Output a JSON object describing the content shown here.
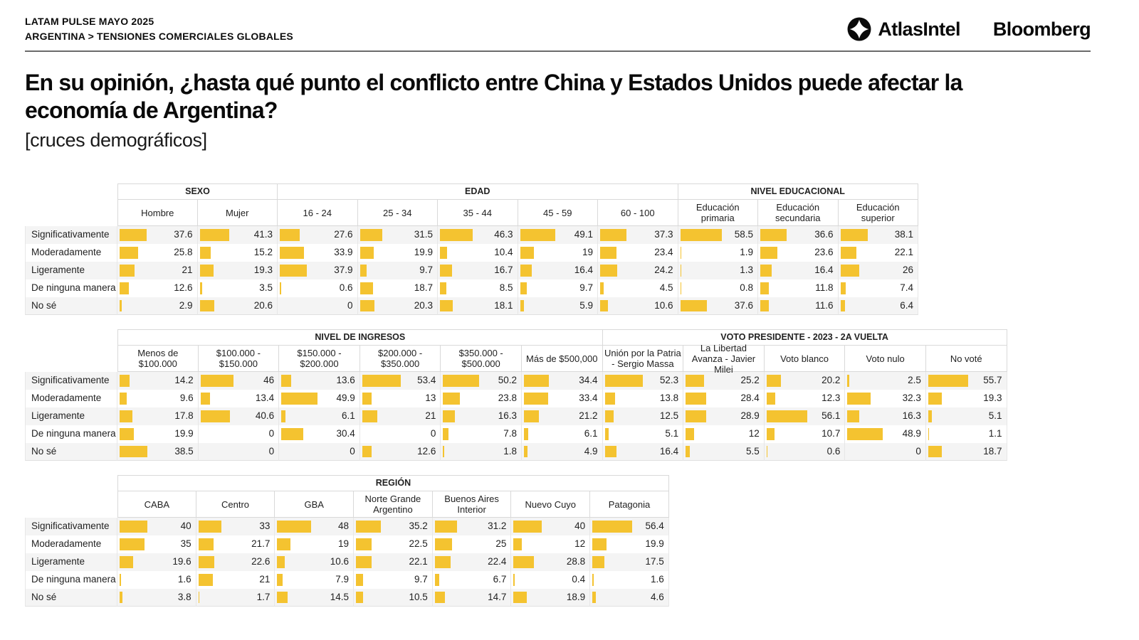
{
  "header": {
    "kicker_line1": "LATAM PULSE MAYO 2025",
    "kicker_line2": "ARGENTINA > TENSIONES COMERCIALES GLOBALES",
    "brand_atlasintel": "AtlasIntel",
    "brand_bloomberg": "Bloomberg"
  },
  "title": {
    "question": "En su opinión, ¿hasta qué punto el conflicto entre China y Estados Unidos puede afectar la economía de Argentina?",
    "subtitle": "[cruces demográficos]"
  },
  "colors": {
    "bar": "#F4C330",
    "row_stripe": "#F4F4F4",
    "header_border": "#D9D9D9",
    "rule": "#6B6B6B"
  },
  "chart_data": {
    "type": "table",
    "title": "En su opinión, ¿hasta qué punto el conflicto entre China y Estados Unidos puede afectar la economía de Argentina? [cruces demográficos]",
    "value_unit": "percent",
    "value_range": [
      0,
      100
    ],
    "row_labels": [
      "Significativamente",
      "Moderadamente",
      "Ligeramente",
      "De ninguna manera",
      "No sé"
    ],
    "tables": [
      {
        "groups": [
          {
            "label": "SEXO",
            "columns": [
              "Hombre",
              "Mujer"
            ]
          },
          {
            "label": "EDAD",
            "columns": [
              "16 - 24",
              "25 - 34",
              "35 - 44",
              "45 - 59",
              "60 - 100"
            ]
          },
          {
            "label": "NIVEL EDUCACIONAL",
            "columns": [
              "Educación primaria",
              "Educación secundaria",
              "Educación superior"
            ]
          }
        ],
        "rows": [
          {
            "label": "Significativamente",
            "values": [
              37.6,
              41.3,
              27.6,
              31.5,
              46.3,
              49.1,
              37.3,
              58.5,
              36.6,
              38.1
            ]
          },
          {
            "label": "Moderadamente",
            "values": [
              25.8,
              15.2,
              33.9,
              19.9,
              10.4,
              19,
              23.4,
              1.9,
              23.6,
              22.1
            ]
          },
          {
            "label": "Ligeramente",
            "values": [
              21,
              19.3,
              37.9,
              9.7,
              16.7,
              16.4,
              24.2,
              1.3,
              16.4,
              26
            ]
          },
          {
            "label": "De ninguna manera",
            "values": [
              12.6,
              3.5,
              0.6,
              18.7,
              8.5,
              9.7,
              4.5,
              0.8,
              11.8,
              7.4
            ]
          },
          {
            "label": "No sé",
            "values": [
              2.9,
              20.6,
              0,
              20.3,
              18.1,
              5.9,
              10.6,
              37.6,
              11.6,
              6.4
            ]
          }
        ]
      },
      {
        "groups": [
          {
            "label": "NIVEL DE INGRESOS",
            "columns": [
              "Menos de $100.000",
              "$100.000 - $150.000",
              "$150.000 - $200.000",
              "$200.000 - $350.000",
              "$350.000 - $500.000",
              "Más de $500,000"
            ]
          },
          {
            "label": "VOTO PRESIDENTE - 2023 - 2A VUELTA",
            "columns": [
              "Unión por la Patria - Sergio Massa",
              "La Libertad Avanza - Javier Milei",
              "Voto blanco",
              "Voto nulo",
              "No voté"
            ]
          }
        ],
        "rows": [
          {
            "label": "Significativamente",
            "values": [
              14.2,
              46,
              13.6,
              53.4,
              50.2,
              34.4,
              52.3,
              25.2,
              20.2,
              2.5,
              55.7
            ]
          },
          {
            "label": "Moderadamente",
            "values": [
              9.6,
              13.4,
              49.9,
              13,
              23.8,
              33.4,
              13.8,
              28.4,
              12.3,
              32.3,
              19.3
            ]
          },
          {
            "label": "Ligeramente",
            "values": [
              17.8,
              40.6,
              6.1,
              21,
              16.3,
              21.2,
              12.5,
              28.9,
              56.1,
              16.3,
              5.1
            ]
          },
          {
            "label": "De ninguna manera",
            "values": [
              19.9,
              0,
              30.4,
              0,
              7.8,
              6.1,
              5.1,
              12,
              10.7,
              48.9,
              1.1
            ]
          },
          {
            "label": "No sé",
            "values": [
              38.5,
              0,
              0,
              12.6,
              1.8,
              4.9,
              16.4,
              5.5,
              0.6,
              0,
              18.7
            ]
          }
        ]
      },
      {
        "groups": [
          {
            "label": "REGIÓN",
            "columns": [
              "CABA",
              "Centro",
              "GBA",
              "Norte Grande Argentino",
              "Buenos Aires Interior",
              "Nuevo Cuyo",
              "Patagonia"
            ]
          }
        ],
        "rows": [
          {
            "label": "Significativamente",
            "values": [
              40,
              33,
              48,
              35.2,
              31.2,
              40,
              56.4
            ]
          },
          {
            "label": "Moderadamente",
            "values": [
              35,
              21.7,
              19,
              22.5,
              25,
              12,
              19.9
            ]
          },
          {
            "label": "Ligeramente",
            "values": [
              19.6,
              22.6,
              10.6,
              22.1,
              22.4,
              28.8,
              17.5
            ]
          },
          {
            "label": "De ninguna manera",
            "values": [
              1.6,
              21,
              7.9,
              9.7,
              6.7,
              0.4,
              1.6
            ]
          },
          {
            "label": "No sé",
            "values": [
              3.8,
              1.7,
              14.5,
              10.5,
              14.7,
              18.9,
              4.6
            ]
          }
        ]
      }
    ]
  }
}
